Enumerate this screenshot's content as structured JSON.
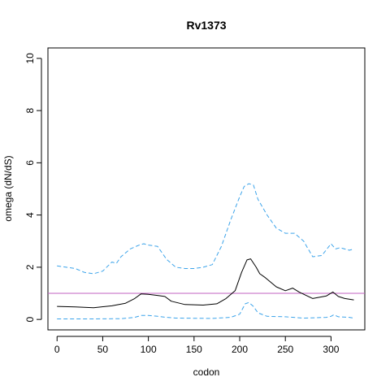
{
  "chart_data": {
    "type": "line",
    "title": "Rv1373",
    "xlabel": "codon",
    "ylabel": "omega (dN/dS)",
    "xlim": [
      -10,
      337
    ],
    "ylim": [
      -0.4,
      10.4
    ],
    "xticks": [
      0,
      50,
      100,
      150,
      200,
      250,
      300
    ],
    "yticks": [
      0,
      2,
      4,
      6,
      8,
      10
    ],
    "grid": false,
    "legend": "none",
    "reference_line": {
      "y": 1,
      "color": "#c060c0"
    },
    "series": [
      {
        "style": "solid",
        "color": "#000000",
        "x": [
          0,
          20,
          40,
          60,
          75,
          85,
          92,
          100,
          110,
          118,
          125,
          140,
          160,
          175,
          185,
          195,
          202,
          208,
          212,
          218,
          222,
          228,
          240,
          250,
          258,
          265,
          280,
          295,
          302,
          308,
          315,
          325
        ],
        "y": [
          0.5,
          0.48,
          0.45,
          0.52,
          0.62,
          0.8,
          0.98,
          0.96,
          0.92,
          0.88,
          0.7,
          0.57,
          0.55,
          0.6,
          0.8,
          1.1,
          1.8,
          2.28,
          2.32,
          2.0,
          1.75,
          1.6,
          1.25,
          1.1,
          1.2,
          1.05,
          0.8,
          0.9,
          1.05,
          0.88,
          0.8,
          0.75
        ]
      },
      {
        "style": "dashed",
        "color": "#3ba3ea",
        "x": [
          0,
          10,
          20,
          30,
          40,
          50,
          60,
          65,
          70,
          80,
          90,
          95,
          100,
          110,
          120,
          130,
          140,
          150,
          160,
          170,
          180,
          190,
          200,
          205,
          210,
          215,
          220,
          230,
          240,
          250,
          260,
          270,
          280,
          290,
          300,
          305,
          310,
          320,
          325
        ],
        "y": [
          2.05,
          2.0,
          1.95,
          1.8,
          1.75,
          1.85,
          2.2,
          2.15,
          2.4,
          2.7,
          2.85,
          2.9,
          2.85,
          2.8,
          2.3,
          2.0,
          1.95,
          1.95,
          2.0,
          2.1,
          2.8,
          3.8,
          4.7,
          5.1,
          5.2,
          5.15,
          4.6,
          4.0,
          3.5,
          3.3,
          3.3,
          3.0,
          2.4,
          2.45,
          2.9,
          2.7,
          2.75,
          2.65,
          2.7
        ]
      },
      {
        "style": "dashed",
        "color": "#3ba3ea",
        "x": [
          0,
          40,
          70,
          85,
          92,
          100,
          110,
          120,
          130,
          170,
          190,
          200,
          206,
          210,
          215,
          220,
          230,
          250,
          270,
          295,
          300,
          303,
          308,
          320,
          325
        ],
        "y": [
          0.02,
          0.02,
          0.03,
          0.08,
          0.15,
          0.15,
          0.12,
          0.08,
          0.05,
          0.04,
          0.08,
          0.2,
          0.6,
          0.65,
          0.5,
          0.25,
          0.12,
          0.1,
          0.05,
          0.08,
          0.12,
          0.18,
          0.1,
          0.08,
          0.05
        ]
      }
    ]
  }
}
